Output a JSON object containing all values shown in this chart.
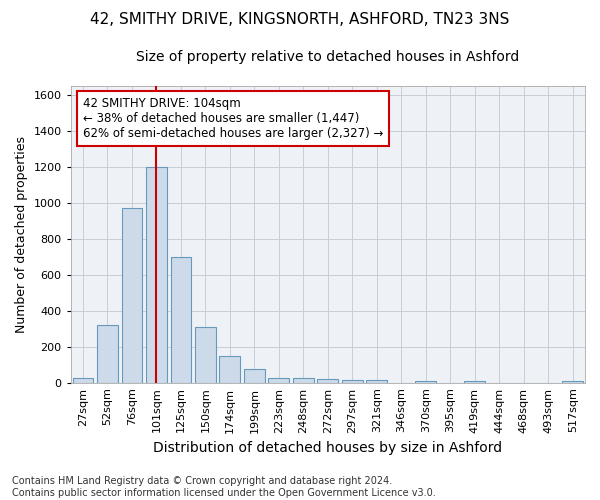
{
  "title_line1": "42, SMITHY DRIVE, KINGSNORTH, ASHFORD, TN23 3NS",
  "title_line2": "Size of property relative to detached houses in Ashford",
  "xlabel": "Distribution of detached houses by size in Ashford",
  "ylabel": "Number of detached properties",
  "footnote": "Contains HM Land Registry data © Crown copyright and database right 2024.\nContains public sector information licensed under the Open Government Licence v3.0.",
  "bar_labels": [
    "27sqm",
    "52sqm",
    "76sqm",
    "101sqm",
    "125sqm",
    "150sqm",
    "174sqm",
    "199sqm",
    "223sqm",
    "248sqm",
    "272sqm",
    "297sqm",
    "321sqm",
    "346sqm",
    "370sqm",
    "395sqm",
    "419sqm",
    "444sqm",
    "468sqm",
    "493sqm",
    "517sqm"
  ],
  "bar_values": [
    25,
    320,
    970,
    1200,
    700,
    310,
    150,
    75,
    25,
    25,
    20,
    15,
    15,
    0,
    12,
    0,
    8,
    0,
    0,
    0,
    8
  ],
  "bar_color": "#ccdaea",
  "bar_edge_color": "#6699bb",
  "vline_x": 3,
  "vline_color": "#cc0000",
  "ylim": [
    0,
    1650
  ],
  "yticks": [
    0,
    200,
    400,
    600,
    800,
    1000,
    1200,
    1400,
    1600
  ],
  "annotation_text": "42 SMITHY DRIVE: 104sqm\n← 38% of detached houses are smaller (1,447)\n62% of semi-detached houses are larger (2,327) →",
  "annotation_box_color": "#ffffff",
  "annotation_box_edge": "#cc0000",
  "bg_color": "#eef2f7",
  "grid_color": "#c5cdd8",
  "title1_fontsize": 11,
  "title2_fontsize": 10,
  "xlabel_fontsize": 10,
  "ylabel_fontsize": 9,
  "tick_fontsize": 8,
  "annot_fontsize": 8.5,
  "footnote_fontsize": 7
}
